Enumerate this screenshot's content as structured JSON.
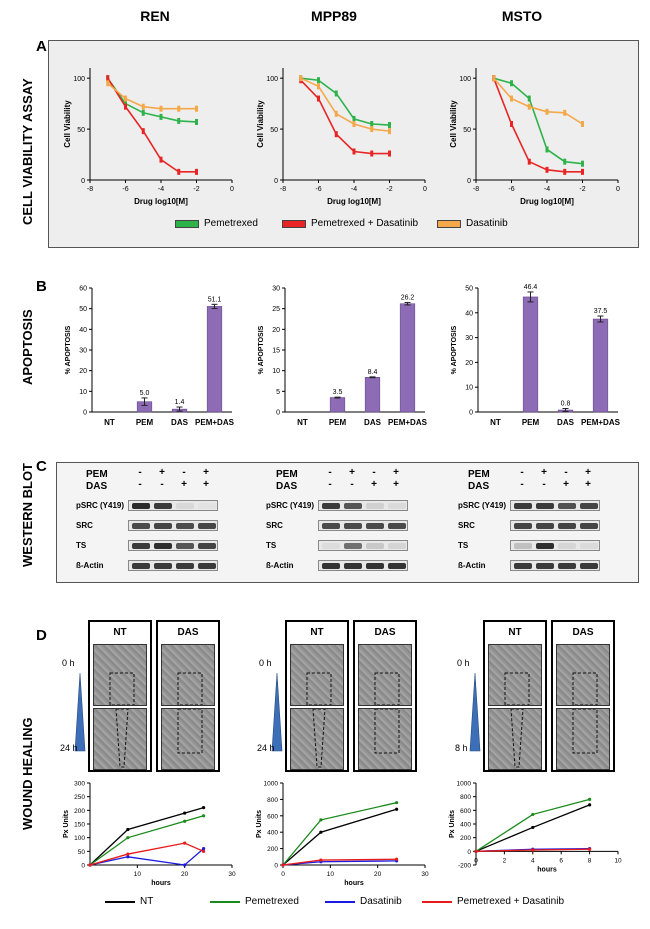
{
  "columns": [
    "REN",
    "MPP89",
    "MSTO"
  ],
  "panels": {
    "A": {
      "letter": "A",
      "side": "CELL VIABILITY ASSAY"
    },
    "B": {
      "letter": "B",
      "side": "APOPTOSIS"
    },
    "C": {
      "letter": "C",
      "side": "WESTERN BLOT"
    },
    "D": {
      "letter": "D",
      "side": "WOUND HEALING"
    }
  },
  "viability": {
    "ylabel": "Cell Viability",
    "xlabel": "Drug log10[M]",
    "xticks": [
      "-8",
      "-6",
      "-4",
      "-2",
      "0"
    ],
    "yticks": [
      "0",
      "50",
      "100"
    ],
    "legend": [
      {
        "label": "Pemetrexed",
        "color": "#2db34a"
      },
      {
        "label": "Pemetrexed + Dasatinib",
        "color": "#e82424"
      },
      {
        "label": "Dasatinib",
        "color": "#f5a84a"
      }
    ]
  },
  "apoptosis": {
    "ylabel": "% APOPTOSIS",
    "categories": [
      "NT",
      "PEM",
      "DAS",
      "PEM+DAS"
    ],
    "bar_color": "#8e6bb5"
  },
  "western": {
    "pem_label": "PEM",
    "das_label": "DAS",
    "pem_signs": [
      "-",
      "+",
      "-",
      "+"
    ],
    "das_signs": [
      "-",
      "-",
      "+",
      "+"
    ],
    "rows": [
      "pSRC (Y419)",
      "SRC",
      "TS",
      "ß-Actin"
    ]
  },
  "wound": {
    "headers": [
      "NT",
      "DAS"
    ],
    "times": [
      [
        "0 h",
        "24 h"
      ],
      [
        "0 h",
        "24 h"
      ],
      [
        "0 h",
        "8 h"
      ]
    ],
    "ylabel": "Px Units",
    "xlabel": "hours",
    "legend": [
      {
        "label": "NT",
        "color": "#000000"
      },
      {
        "label": "Pemetrexed",
        "color": "#1a8a1a"
      },
      {
        "label": "Dasatinib",
        "color": "#1a1ae0"
      },
      {
        "label": "Pemetrexed + Dasatinib",
        "color": "#e81a1a"
      }
    ]
  },
  "chart_data": [
    {
      "type": "line",
      "title": "REN cell viability",
      "xlabel": "Drug log10[M]",
      "ylabel": "Cell Viability",
      "xlim": [
        -8,
        0
      ],
      "ylim": [
        0,
        110
      ],
      "series": [
        {
          "name": "Pemetrexed",
          "x": [
            -7,
            -6,
            -5,
            -4,
            -3,
            -2
          ],
          "y": [
            100,
            75,
            66,
            62,
            58,
            57
          ]
        },
        {
          "name": "Pemetrexed + Dasatinib",
          "x": [
            -7,
            -6,
            -5,
            -4,
            -3,
            -2
          ],
          "y": [
            100,
            72,
            48,
            20,
            8,
            8
          ]
        },
        {
          "name": "Dasatinib",
          "x": [
            -7,
            -6,
            -5,
            -4,
            -3,
            -2
          ],
          "y": [
            95,
            80,
            72,
            70,
            70,
            70
          ]
        }
      ]
    },
    {
      "type": "line",
      "title": "MPP89 cell viability",
      "xlabel": "Drug log10[M]",
      "ylabel": "Cell Viability",
      "xlim": [
        -8,
        0
      ],
      "ylim": [
        0,
        110
      ],
      "series": [
        {
          "name": "Pemetrexed",
          "x": [
            -7,
            -6,
            -5,
            -4,
            -3,
            -2
          ],
          "y": [
            100,
            98,
            85,
            60,
            55,
            54
          ]
        },
        {
          "name": "Pemetrexed + Dasatinib",
          "x": [
            -7,
            -6,
            -5,
            -4,
            -3,
            -2
          ],
          "y": [
            98,
            80,
            45,
            28,
            26,
            26
          ]
        },
        {
          "name": "Dasatinib",
          "x": [
            -7,
            -6,
            -5,
            -4,
            -3,
            -2
          ],
          "y": [
            100,
            92,
            65,
            55,
            50,
            48
          ]
        }
      ]
    },
    {
      "type": "line",
      "title": "MSTO cell viability",
      "xlabel": "Drug log10[M]",
      "ylabel": "Cell Viability",
      "xlim": [
        -8,
        0
      ],
      "ylim": [
        0,
        110
      ],
      "series": [
        {
          "name": "Pemetrexed",
          "x": [
            -7,
            -6,
            -5,
            -4,
            -3,
            -2
          ],
          "y": [
            100,
            95,
            80,
            30,
            18,
            16
          ]
        },
        {
          "name": "Pemetrexed + Dasatinib",
          "x": [
            -7,
            -6,
            -5,
            -4,
            -3,
            -2
          ],
          "y": [
            100,
            55,
            18,
            10,
            8,
            8
          ]
        },
        {
          "name": "Dasatinib",
          "x": [
            -7,
            -6,
            -5,
            -4,
            -3,
            -2
          ],
          "y": [
            100,
            80,
            72,
            67,
            66,
            55
          ]
        }
      ]
    },
    {
      "type": "bar",
      "title": "REN apoptosis",
      "ylabel": "% APOPTOSIS",
      "categories": [
        "NT",
        "PEM",
        "DAS",
        "PEM+DAS"
      ],
      "values": [
        0,
        5.0,
        1.4,
        51.1
      ],
      "labels": [
        "",
        "5.0",
        "1.4",
        "51.1"
      ],
      "errors": [
        0,
        1.8,
        1.0,
        1.0
      ],
      "ylim": [
        0,
        60
      ],
      "yticks": [
        0,
        10,
        20,
        30,
        40,
        50,
        60
      ]
    },
    {
      "type": "bar",
      "title": "MPP89 apoptosis",
      "ylabel": "% APOPTOSIS",
      "categories": [
        "NT",
        "PEM",
        "DAS",
        "PEM+DAS"
      ],
      "values": [
        0,
        3.5,
        8.4,
        26.2
      ],
      "labels": [
        "",
        "3.5",
        "8.4",
        "26.2"
      ],
      "errors": [
        0,
        0.1,
        0.1,
        0.3
      ],
      "ylim": [
        0,
        30
      ],
      "yticks": [
        0,
        5,
        10,
        15,
        20,
        25,
        30
      ]
    },
    {
      "type": "bar",
      "title": "MSTO apoptosis",
      "ylabel": "% APOPTOSIS",
      "categories": [
        "NT",
        "PEM",
        "DAS",
        "PEM+DAS"
      ],
      "values": [
        0,
        46.4,
        0.8,
        37.5
      ],
      "labels": [
        "",
        "46.4",
        "0.8",
        "37.5"
      ],
      "errors": [
        0,
        2.0,
        0.6,
        1.2
      ],
      "ylim": [
        0,
        50
      ],
      "yticks": [
        0,
        10,
        20,
        30,
        40,
        50
      ]
    },
    {
      "type": "line",
      "title": "REN wound healing",
      "xlabel": "hours",
      "ylabel": "Px Units",
      "xlim": [
        0,
        30
      ],
      "ylim": [
        0,
        300
      ],
      "xticks": [
        10,
        20,
        30
      ],
      "yticks": [
        0,
        50,
        100,
        150,
        200,
        250,
        300
      ],
      "series": [
        {
          "name": "NT",
          "x": [
            0,
            8,
            20,
            24
          ],
          "y": [
            0,
            130,
            190,
            210
          ]
        },
        {
          "name": "Pemetrexed",
          "x": [
            0,
            8,
            20,
            24
          ],
          "y": [
            0,
            100,
            160,
            180
          ]
        },
        {
          "name": "Dasatinib",
          "x": [
            0,
            8,
            20,
            24
          ],
          "y": [
            0,
            30,
            0,
            60
          ]
        },
        {
          "name": "Pemetrexed + Dasatinib",
          "x": [
            0,
            8,
            20,
            24
          ],
          "y": [
            0,
            40,
            80,
            50
          ]
        }
      ]
    },
    {
      "type": "line",
      "title": "MPP89 wound healing",
      "xlabel": "hours",
      "ylabel": "Px Units",
      "xlim": [
        0,
        30
      ],
      "ylim": [
        0,
        1000
      ],
      "xticks": [
        0,
        10,
        20,
        30
      ],
      "yticks": [
        0,
        200,
        400,
        600,
        800,
        1000
      ],
      "series": [
        {
          "name": "NT",
          "x": [
            0,
            8,
            24
          ],
          "y": [
            0,
            400,
            680
          ]
        },
        {
          "name": "Pemetrexed",
          "x": [
            0,
            8,
            24
          ],
          "y": [
            0,
            550,
            760
          ]
        },
        {
          "name": "Dasatinib",
          "x": [
            0,
            8,
            24
          ],
          "y": [
            0,
            40,
            50
          ]
        },
        {
          "name": "Pemetrexed + Dasatinib",
          "x": [
            0,
            8,
            24
          ],
          "y": [
            0,
            60,
            70
          ]
        }
      ]
    },
    {
      "type": "line",
      "title": "MSTO wound healing",
      "xlabel": "hours",
      "ylabel": "Px Units",
      "xlim": [
        0,
        10
      ],
      "ylim": [
        -200,
        1000
      ],
      "xticks": [
        0,
        2,
        4,
        6,
        8,
        10
      ],
      "yticks": [
        -200,
        0,
        200,
        400,
        600,
        800,
        1000
      ],
      "series": [
        {
          "name": "NT",
          "x": [
            0,
            4,
            8
          ],
          "y": [
            0,
            350,
            680
          ]
        },
        {
          "name": "Pemetrexed",
          "x": [
            0,
            4,
            8
          ],
          "y": [
            0,
            540,
            760
          ]
        },
        {
          "name": "Dasatinib",
          "x": [
            0,
            4,
            8
          ],
          "y": [
            0,
            30,
            40
          ]
        },
        {
          "name": "Pemetrexed + Dasatinib",
          "x": [
            0,
            4,
            8
          ],
          "y": [
            0,
            20,
            30
          ]
        }
      ]
    }
  ]
}
